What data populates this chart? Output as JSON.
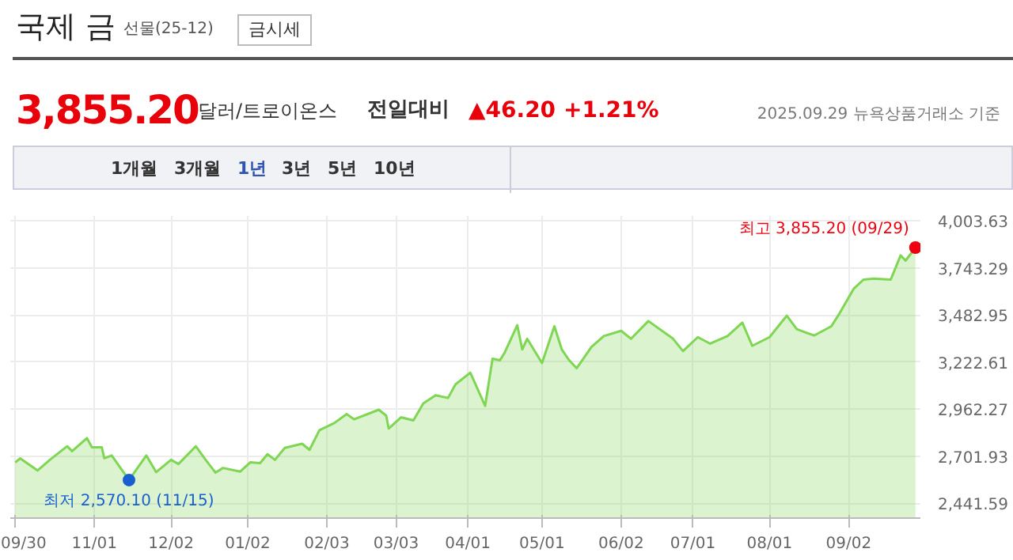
{
  "chart_data": {
    "type": "area",
    "title": "국제 금",
    "subtitle": "선물(25-12)",
    "annotations": [
      "금시세",
      "3,855.20",
      "달러/트로이온스",
      "전일대비",
      "▲46.20",
      "+1.21%",
      "2025.09.29 뉴욕상품거래소 기준",
      "1개월",
      "3개월",
      "1년",
      "3년",
      "5년",
      "10년",
      {
        "text": "최고 3,855.20 (09/29)",
        "x": "2025-09-29",
        "y": 3855.2
      },
      {
        "text": "최저 2,570.10 (11/15)",
        "x": "2024-11-15",
        "y": 2570.1
      }
    ],
    "x": [
      "2024-09-30",
      "2024-10-02",
      "2024-10-09",
      "2024-10-14",
      "2024-10-21",
      "2024-10-23",
      "2024-10-29",
      "2024-10-31",
      "2024-11-04",
      "2024-11-05",
      "2024-11-08",
      "2024-11-15",
      "2024-11-22",
      "2024-11-26",
      "2024-12-02",
      "2024-12-05",
      "2024-12-12",
      "2024-12-16",
      "2024-12-20",
      "2024-12-23",
      "2024-12-30",
      "2025-01-03",
      "2025-01-07",
      "2025-01-10",
      "2025-01-13",
      "2025-01-17",
      "2025-01-24",
      "2025-01-27",
      "2025-01-31",
      "2025-02-06",
      "2025-02-11",
      "2025-02-14",
      "2025-02-24",
      "2025-02-27",
      "2025-02-28",
      "2025-03-05",
      "2025-03-10",
      "2025-03-14",
      "2025-03-19",
      "2025-03-24",
      "2025-03-27",
      "2025-04-02",
      "2025-04-08",
      "2025-04-11",
      "2025-04-14",
      "2025-04-16",
      "2025-04-21",
      "2025-04-23",
      "2025-04-25",
      "2025-05-01",
      "2025-05-06",
      "2025-05-09",
      "2025-05-12",
      "2025-05-15",
      "2025-05-21",
      "2025-05-26",
      "2025-06-02",
      "2025-06-06",
      "2025-06-13",
      "2025-06-23",
      "2025-06-27",
      "2025-07-03",
      "2025-07-08",
      "2025-07-15",
      "2025-07-21",
      "2025-07-25",
      "2025-08-01",
      "2025-08-08",
      "2025-08-12",
      "2025-08-19",
      "2025-08-26",
      "2025-08-29",
      "2025-09-04",
      "2025-09-08",
      "2025-09-12",
      "2025-09-19",
      "2025-09-23",
      "2025-09-25",
      "2025-09-29"
    ],
    "series": [
      {
        "color": "#7fd653",
        "values": [
          2668,
          2690,
          2623,
          2682,
          2757,
          2730,
          2802,
          2751,
          2751,
          2691,
          2706,
          2570.1,
          2706,
          2614,
          2682,
          2659,
          2757,
          2682,
          2611,
          2637,
          2617,
          2668,
          2664,
          2713,
          2682,
          2748,
          2771,
          2737,
          2846,
          2885,
          2935,
          2906,
          2959,
          2926,
          2855,
          2917,
          2900,
          2994,
          3039,
          3024,
          3099,
          3164,
          2980,
          3241,
          3232,
          3277,
          3426,
          3292,
          3351,
          3217,
          3420,
          3292,
          3232,
          3188,
          3306,
          3366,
          3395,
          3351,
          3449,
          3351,
          3283,
          3360,
          3324,
          3366,
          3440,
          3312,
          3360,
          3479,
          3404,
          3369,
          3420,
          3485,
          3627,
          3678,
          3684,
          3678,
          3812,
          3783,
          3855.2
        ]
      }
    ],
    "xlim": [
      "2024-09-28",
      "2025-10-01"
    ],
    "xticks": [
      {
        "value": "2024-09-30",
        "label": "09/30"
      },
      {
        "value": "2024-11-01",
        "label": "11/01"
      },
      {
        "value": "2024-12-02",
        "label": "12/02"
      },
      {
        "value": "2025-01-02",
        "label": "01/02"
      },
      {
        "value": "2025-02-03",
        "label": "02/03"
      },
      {
        "value": "2025-03-03",
        "label": "03/03"
      },
      {
        "value": "2025-04-01",
        "label": "04/01"
      },
      {
        "value": "2025-05-01",
        "label": "05/01"
      },
      {
        "value": "2025-06-02",
        "label": "06/02"
      },
      {
        "value": "2025-07-01",
        "label": "07/01"
      },
      {
        "value": "2025-08-01",
        "label": "08/01"
      },
      {
        "value": "2025-09-02",
        "label": "09/02"
      }
    ],
    "ylim": [
      2360,
      4030
    ],
    "yticks": [
      {
        "value": 2441.59,
        "label": "2,441.59"
      },
      {
        "value": 2701.93,
        "label": "2,701.93"
      },
      {
        "value": 2962.27,
        "label": "2,962.27"
      },
      {
        "value": 3222.61,
        "label": "3,222.61"
      },
      {
        "value": 3482.95,
        "label": "3,482.95"
      },
      {
        "value": 3743.29,
        "label": "3,743.29"
      },
      {
        "value": 4003.63,
        "label": "4,003.63"
      }
    ],
    "grid": true
  }
}
